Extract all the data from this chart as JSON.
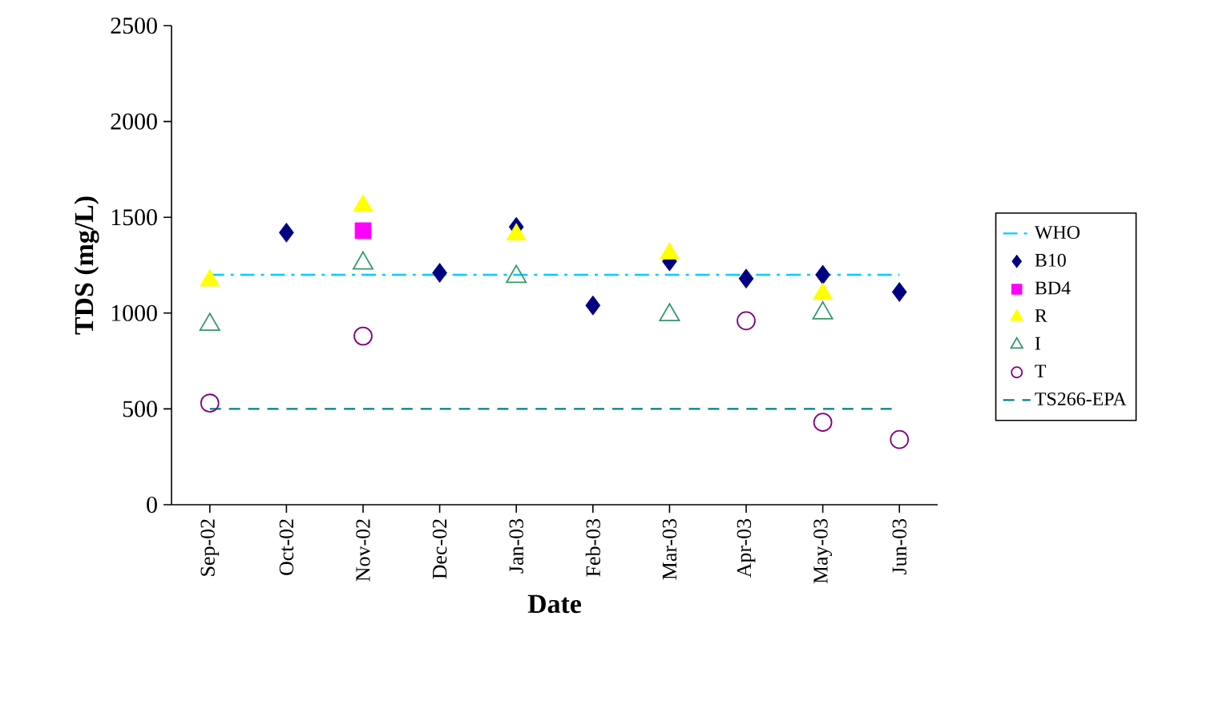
{
  "chart_data": {
    "type": "scatter",
    "xlabel": "Date",
    "ylabel": "TDS (mg/L)",
    "categories": [
      "Sep-02",
      "Oct-02",
      "Nov-02",
      "Dec-02",
      "Jan-03",
      "Feb-03",
      "Mar-03",
      "Apr-03",
      "May-03",
      "Jun-03"
    ],
    "ylim": [
      0,
      2500
    ],
    "yticks": [
      0,
      500,
      1000,
      1500,
      2000,
      2500
    ],
    "grid": false,
    "legend": "right",
    "series": [
      {
        "name": "WHO",
        "type": "line",
        "color": "#00ccff",
        "line_style": "dashdot",
        "marker": "none",
        "values": [
          1200,
          1200,
          1200,
          1200,
          1200,
          1200,
          1200,
          1200,
          1200,
          1200
        ]
      },
      {
        "name": "B10",
        "color": "#000080",
        "marker": "diamond",
        "values": [
          null,
          1420,
          null,
          1210,
          1450,
          1040,
          1270,
          1180,
          1200,
          1110
        ]
      },
      {
        "name": "BD4",
        "color": "#ff00ff",
        "marker": "square",
        "values": [
          null,
          null,
          1430,
          null,
          null,
          null,
          null,
          null,
          null,
          null
        ]
      },
      {
        "name": "R",
        "color": "#ffff00",
        "marker": "triangle",
        "values": [
          1170,
          null,
          1560,
          null,
          1410,
          null,
          1310,
          null,
          1100,
          null
        ]
      },
      {
        "name": "I",
        "color": "#339966",
        "marker": "triangle-open",
        "values": [
          940,
          null,
          1260,
          null,
          1190,
          null,
          990,
          null,
          1000,
          null
        ]
      },
      {
        "name": "T",
        "color": "#800080",
        "marker": "circle-open",
        "values": [
          530,
          null,
          880,
          null,
          null,
          null,
          null,
          960,
          430,
          340
        ]
      },
      {
        "name": "TS266-EPA",
        "type": "line",
        "color": "#008080",
        "line_style": "dashed",
        "marker": "none",
        "values": [
          500,
          500,
          500,
          500,
          500,
          500,
          500,
          500,
          500,
          500
        ]
      }
    ]
  }
}
